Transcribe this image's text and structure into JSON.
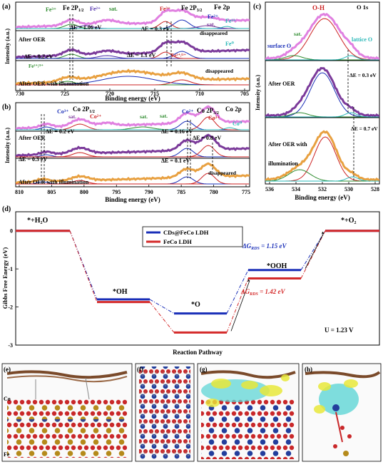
{
  "panel_a": {
    "letter": "(a)",
    "title": "Fe 2p",
    "xlabel": "Binding energy (eV)",
    "ylabel": "Intensity (a.u.)",
    "ticks": [
      "730",
      "725",
      "720",
      "715",
      "710",
      "705"
    ],
    "fe2p12": "Fe 2P",
    "fe2p12_sub": "1/2",
    "fe2p32": "Fe 2P",
    "fe2p32_sub": "3/2",
    "fe3_left": "Fe³⁺",
    "fe2_left": "Fe²⁺",
    "sat_a": "sat.",
    "fe3_mid": "Fe³⁺",
    "fe2_mid": "Fe²⁺",
    "fe3_right": "Fe³⁺",
    "sat_a2": "sat.",
    "fe0": "Fe⁰",
    "de1": "ΔE = 1.06 eV",
    "de2": "ΔE = 0.3 eV",
    "de3": "ΔE = 0.2 eV",
    "de4": "ΔE = 1.1 eV",
    "disappeared_1": "disappeared",
    "disappeared_2": "disappeared",
    "after_oer": "After OER",
    "after_oer_ill": "After OER with illumination",
    "fe23_left": "Fe²⁺/³⁺",
    "fe23_mid": "Fe²⁺/³⁺",
    "fe0_right": "Fe⁰"
  },
  "panel_b": {
    "letter": "(b)",
    "title": "Co 2p",
    "xlabel": "Binding energy (eV)",
    "ylabel": "Intensity (a.u.)",
    "ticks": [
      "810",
      "805",
      "800",
      "795",
      "790",
      "785",
      "780",
      "775"
    ],
    "co3_left": "Co³⁺",
    "co2p12": "Co 2P",
    "co2p12_sub": "1/2",
    "sat_b1": "sat.",
    "co2_mid": "Co²⁺",
    "sat_b2": "sat.",
    "sat_b3": "sat.",
    "co2_right": "Co²⁺",
    "co2p32": "Co 2P",
    "co2p32_sub": "3/2",
    "co3_right": "Co³⁺",
    "co0": "Co⁰",
    "de1": "ΔE = 0.2 eV",
    "de2": "ΔE = 0.16 eV",
    "de3": "ΔE = 0.8 eV",
    "de4": "ΔE = 0.3 eV",
    "de5": "ΔE = 0.1 eV",
    "disappeared": "disappeared",
    "after_oer": "After OER",
    "after_oer_ill": "After OER with illumination"
  },
  "panel_c": {
    "letter": "(c)",
    "title": "O 1s",
    "oh": "O-H",
    "surface_o": "surface O",
    "sat": "sat.",
    "lattice_o": "lattice O",
    "de1": "ΔE = 0.3 eV",
    "de2": "ΔE = 0.7 eV",
    "after_oer": "After OER",
    "after_oer_ill_1": "After OER with",
    "after_oer_ill_2": "illumination",
    "xlabel": "Binding energy (eV)",
    "ylabel": "Intensity (a.u.)",
    "ticks": [
      "536",
      "534",
      "532",
      "530",
      "528"
    ]
  },
  "panel_d": {
    "letter": "(d)",
    "ylabel": "Gibbs Free Energy (eV)",
    "xlabel": "Reaction Pathway",
    "yticks": [
      "0",
      "-1",
      "-2",
      "-3"
    ],
    "state_h2o": "*+H₂O",
    "state_oh": "*OH",
    "state_o": "*O",
    "state_ooh": "*OOH",
    "state_o2": "*+O₂",
    "legend_cds": "CDs@FeCo LDH",
    "legend_feco": "FeCo LDH",
    "dg_blue": "ΔG",
    "dg_blue_sub": "RDS",
    "dg_blue_val": " = 1.15 eV",
    "dg_red": "ΔG",
    "dg_red_sub": "RDS",
    "dg_red_val": " = 1.42 eV",
    "u_label": "U = 1.23 V",
    "colors": {
      "blue": "#1a2fb8",
      "red": "#d42a2a"
    },
    "chart_data": {
      "type": "line",
      "categories": [
        "*+H2O",
        "*OH",
        "*O",
        "*OOH",
        "*+O2"
      ],
      "series": [
        {
          "name": "CDs@FeCo LDH",
          "values": [
            0,
            -1.8,
            -2.17,
            -1.03,
            0
          ]
        },
        {
          "name": "FeCo LDH",
          "values": [
            0,
            -1.87,
            -2.67,
            -1.25,
            0
          ]
        }
      ],
      "ylim": [
        -3,
        0.5
      ]
    }
  },
  "panel_e": {
    "letter": "(e)",
    "co": "Co",
    "fe": "Fe"
  },
  "panel_f": {
    "letter": "(f)"
  },
  "panel_g": {
    "letter": "(g)"
  },
  "panel_h": {
    "letter": "(h)"
  }
}
